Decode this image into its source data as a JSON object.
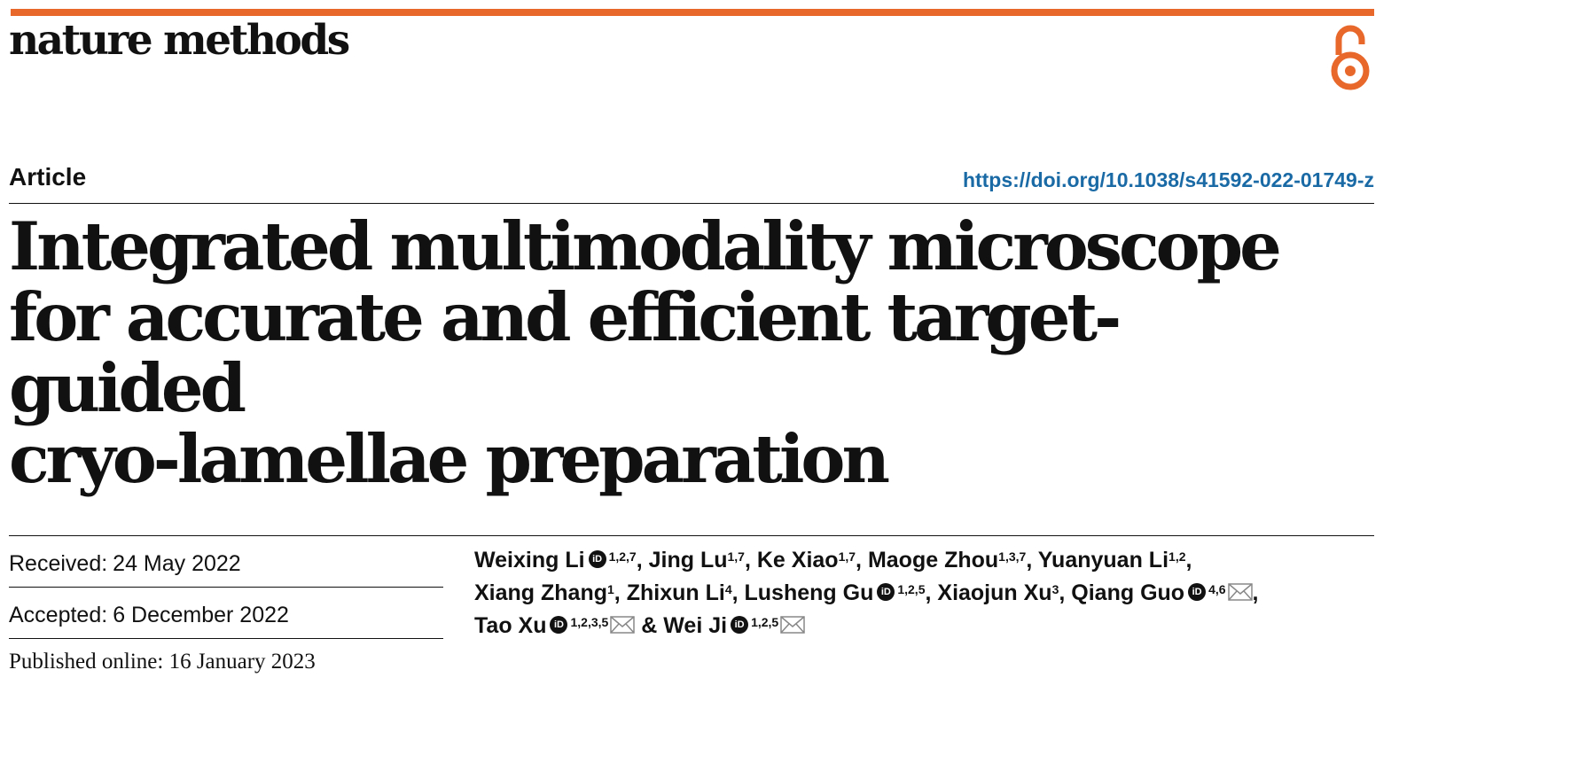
{
  "journal": "nature methods",
  "article_type": "Article",
  "doi": "https://doi.org/10.1038/s41592-022-01749-z",
  "title_lines": [
    "Integrated multimodality microscope",
    "for accurate and efficient target-guided",
    "cryo-lamellae preparation"
  ],
  "dates": {
    "received_label": "Received:",
    "received_value": "24 May 2022",
    "accepted_label": "Accepted:",
    "accepted_value": "6 December 2022",
    "published_label": "Published online:",
    "published_value": "16 January 2023"
  },
  "authors": [
    {
      "name": "Weixing Li",
      "orcid": true,
      "aff": "1,2,7",
      "mail": false
    },
    {
      "name": "Jing Lu",
      "orcid": false,
      "aff": "1,7",
      "mail": false
    },
    {
      "name": "Ke Xiao",
      "orcid": false,
      "aff": "1,7",
      "mail": false
    },
    {
      "name": "Maoge Zhou",
      "orcid": false,
      "aff": "1,3,7",
      "mail": false
    },
    {
      "name": "Yuanyuan Li",
      "orcid": false,
      "aff": "1,2",
      "mail": false
    },
    {
      "name": "Xiang Zhang",
      "orcid": false,
      "aff": "1",
      "mail": false
    },
    {
      "name": "Zhixun Li",
      "orcid": false,
      "aff": "4",
      "mail": false
    },
    {
      "name": "Lusheng Gu",
      "orcid": true,
      "aff": "1,2,5",
      "mail": false
    },
    {
      "name": "Xiaojun Xu",
      "orcid": false,
      "aff": "3",
      "mail": false
    },
    {
      "name": "Qiang Guo",
      "orcid": true,
      "aff": "4,6",
      "mail": true
    },
    {
      "name": "Tao Xu",
      "orcid": true,
      "aff": "1,2,3,5",
      "mail": true
    },
    {
      "name": "Wei Ji",
      "orcid": true,
      "aff": "1,2,5",
      "mail": true
    }
  ],
  "icons": {
    "open_access": "open-access-lock-icon",
    "orcid": "orcid-icon",
    "mail": "envelope-icon"
  },
  "colors": {
    "accent": "#e8672a",
    "link": "#1a6aa6"
  }
}
